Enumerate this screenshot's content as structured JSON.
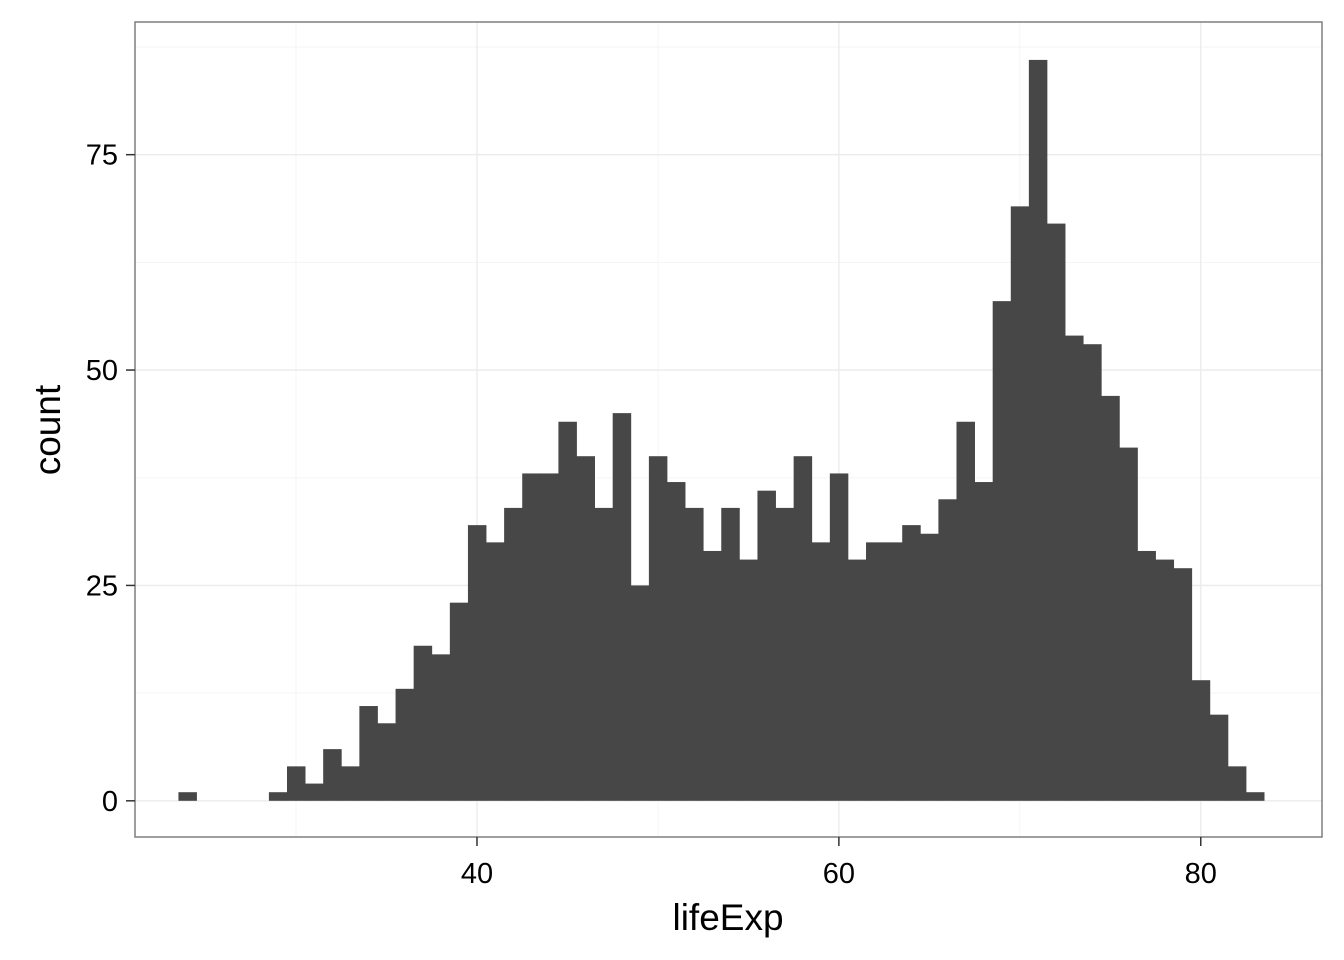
{
  "chart_data": {
    "type": "bar",
    "xlabel": "lifeExp",
    "ylabel": "count",
    "xlim": [
      21.1,
      86.7
    ],
    "ylim": [
      -4.2,
      90.4
    ],
    "x_ticks": [
      40,
      60,
      80
    ],
    "y_ticks": [
      0,
      25,
      50,
      75
    ],
    "grid": true,
    "bin_width": 1,
    "bar_color": "#474747",
    "panel_border_color": "#7f7f7f",
    "grid_color": "#ebebeb",
    "bins": {
      "x": [
        24,
        25,
        26,
        27,
        28,
        29,
        30,
        31,
        32,
        33,
        34,
        35,
        36,
        37,
        38,
        39,
        40,
        41,
        42,
        43,
        44,
        45,
        46,
        47,
        48,
        49,
        50,
        51,
        52,
        53,
        54,
        55,
        56,
        57,
        58,
        59,
        60,
        61,
        62,
        63,
        64,
        65,
        66,
        67,
        68,
        69,
        70,
        71,
        72,
        73,
        74,
        75,
        76,
        77,
        78,
        79,
        80,
        81,
        82,
        83
      ],
      "counts": [
        1,
        0,
        0,
        0,
        0,
        1,
        4,
        2,
        6,
        4,
        11,
        9,
        13,
        18,
        17,
        23,
        32,
        30,
        34,
        38,
        38,
        44,
        40,
        34,
        45,
        25,
        40,
        37,
        34,
        29,
        34,
        28,
        36,
        34,
        40,
        30,
        38,
        28,
        30,
        30,
        32,
        31,
        35,
        44,
        37,
        58,
        69,
        86,
        67,
        54,
        53,
        47,
        41,
        29,
        28,
        27,
        14,
        10,
        4,
        1
      ]
    }
  }
}
